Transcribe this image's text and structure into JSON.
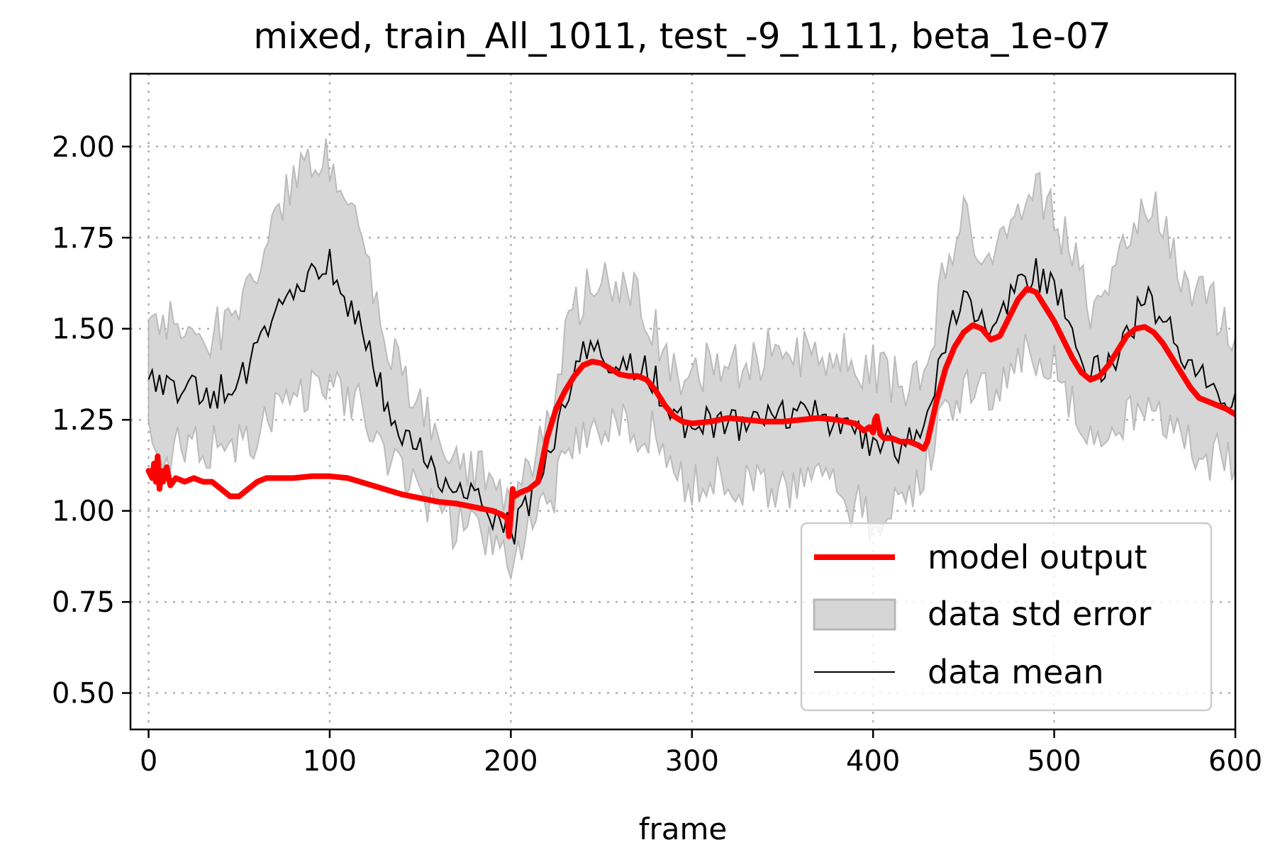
{
  "chart_data": {
    "type": "line",
    "title": "mixed, train_All_1011, test_-9_1111, beta_1e-07",
    "xlabel": "frame",
    "ylabel": "",
    "xlim": [
      -10,
      600
    ],
    "ylim": [
      0.4,
      2.2
    ],
    "xticks": [
      0,
      100,
      200,
      300,
      400,
      500,
      600
    ],
    "xtick_labels": [
      "0",
      "100",
      "200",
      "300",
      "400",
      "500",
      "600"
    ],
    "yticks": [
      0.5,
      0.75,
      1.0,
      1.25,
      1.5,
      1.75,
      2.0
    ],
    "ytick_labels": [
      "0.50",
      "0.75",
      "1.00",
      "1.25",
      "1.50",
      "1.75",
      "2.00"
    ],
    "grid": true,
    "legend_position": "lower-right",
    "colors": {
      "model_output": "#ff0000",
      "data_mean": "#000000",
      "std_error_fill": "#d6d6d6",
      "std_error_edge": "#b0b0b0",
      "grid": "#b0b0b0"
    },
    "frames": {
      "start": 0,
      "end": 600,
      "step": 2
    },
    "series": [
      {
        "name": "model output",
        "role": "line",
        "x": [
          0,
          2,
          3,
          4,
          5,
          6,
          7,
          8,
          10,
          12,
          15,
          20,
          25,
          30,
          35,
          40,
          45,
          50,
          55,
          60,
          65,
          70,
          80,
          90,
          100,
          110,
          120,
          130,
          140,
          150,
          160,
          170,
          180,
          190,
          195,
          198,
          199,
          200,
          201,
          202,
          205,
          210,
          215,
          220,
          225,
          230,
          235,
          240,
          245,
          250,
          255,
          260,
          265,
          270,
          275,
          280,
          285,
          290,
          295,
          300,
          310,
          320,
          330,
          340,
          350,
          360,
          370,
          380,
          390,
          395,
          398,
          400,
          401,
          402,
          404,
          406,
          410,
          415,
          420,
          425,
          428,
          430,
          435,
          440,
          445,
          450,
          455,
          460,
          465,
          470,
          475,
          480,
          485,
          490,
          495,
          500,
          505,
          510,
          515,
          520,
          525,
          530,
          535,
          540,
          545,
          550,
          555,
          560,
          565,
          570,
          575,
          580,
          585,
          590,
          595,
          600
        ],
        "y": [
          1.11,
          1.09,
          1.13,
          1.08,
          1.15,
          1.06,
          1.11,
          1.08,
          1.12,
          1.07,
          1.09,
          1.08,
          1.09,
          1.08,
          1.08,
          1.06,
          1.04,
          1.04,
          1.06,
          1.08,
          1.09,
          1.09,
          1.09,
          1.095,
          1.095,
          1.09,
          1.075,
          1.06,
          1.045,
          1.035,
          1.025,
          1.02,
          1.01,
          1.0,
          0.99,
          0.98,
          0.93,
          0.99,
          1.06,
          1.04,
          1.05,
          1.06,
          1.08,
          1.2,
          1.28,
          1.33,
          1.37,
          1.4,
          1.41,
          1.405,
          1.39,
          1.375,
          1.37,
          1.37,
          1.36,
          1.33,
          1.29,
          1.26,
          1.245,
          1.24,
          1.245,
          1.255,
          1.25,
          1.245,
          1.245,
          1.25,
          1.255,
          1.25,
          1.24,
          1.22,
          1.23,
          1.215,
          1.25,
          1.26,
          1.21,
          1.2,
          1.2,
          1.19,
          1.19,
          1.18,
          1.17,
          1.19,
          1.3,
          1.39,
          1.45,
          1.49,
          1.51,
          1.5,
          1.47,
          1.48,
          1.53,
          1.58,
          1.61,
          1.6,
          1.56,
          1.52,
          1.47,
          1.42,
          1.38,
          1.36,
          1.37,
          1.4,
          1.44,
          1.48,
          1.5,
          1.505,
          1.49,
          1.46,
          1.42,
          1.38,
          1.34,
          1.31,
          1.3,
          1.29,
          1.28,
          1.265
        ]
      },
      {
        "name": "data std error",
        "role": "band",
        "x": [
          0,
          10,
          20,
          30,
          40,
          50,
          60,
          70,
          80,
          90,
          100,
          110,
          120,
          130,
          140,
          150,
          160,
          170,
          180,
          190,
          200,
          210,
          220,
          230,
          240,
          250,
          260,
          270,
          280,
          290,
          300,
          310,
          320,
          330,
          340,
          350,
          360,
          370,
          380,
          390,
          400,
          410,
          420,
          430,
          440,
          450,
          460,
          470,
          480,
          490,
          500,
          510,
          520,
          530,
          540,
          550,
          560,
          570,
          580,
          590,
          600
        ],
        "lower": [
          1.19,
          1.15,
          1.19,
          1.17,
          1.17,
          1.18,
          1.22,
          1.3,
          1.36,
          1.32,
          1.38,
          1.31,
          1.28,
          1.16,
          1.09,
          1.02,
          0.99,
          0.96,
          0.93,
          0.89,
          0.86,
          0.95,
          1.02,
          1.13,
          1.24,
          1.24,
          1.23,
          1.23,
          1.22,
          1.11,
          1.08,
          1.08,
          1.08,
          1.07,
          1.07,
          1.07,
          1.08,
          1.09,
          1.07,
          1.01,
          0.98,
          1.0,
          1.02,
          1.14,
          1.27,
          1.32,
          1.31,
          1.35,
          1.41,
          1.44,
          1.39,
          1.29,
          1.19,
          1.19,
          1.26,
          1.3,
          1.27,
          1.2,
          1.15,
          1.15,
          1.13
        ],
        "upper": [
          1.52,
          1.52,
          1.5,
          1.46,
          1.5,
          1.53,
          1.64,
          1.82,
          1.9,
          1.94,
          1.96,
          1.85,
          1.7,
          1.46,
          1.38,
          1.3,
          1.2,
          1.17,
          1.11,
          1.09,
          1.02,
          1.11,
          1.24,
          1.48,
          1.6,
          1.62,
          1.6,
          1.58,
          1.5,
          1.38,
          1.36,
          1.4,
          1.38,
          1.42,
          1.43,
          1.44,
          1.43,
          1.42,
          1.43,
          1.4,
          1.4,
          1.36,
          1.34,
          1.38,
          1.7,
          1.8,
          1.73,
          1.73,
          1.83,
          1.88,
          1.81,
          1.7,
          1.56,
          1.58,
          1.72,
          1.84,
          1.82,
          1.67,
          1.59,
          1.55,
          1.45
        ]
      },
      {
        "name": "data mean",
        "role": "noisy-line",
        "x": [
          0,
          10,
          20,
          30,
          40,
          50,
          60,
          70,
          80,
          90,
          100,
          110,
          120,
          130,
          140,
          150,
          160,
          170,
          180,
          190,
          200,
          210,
          220,
          230,
          240,
          250,
          260,
          270,
          280,
          290,
          300,
          310,
          320,
          330,
          340,
          350,
          360,
          370,
          380,
          390,
          400,
          410,
          420,
          430,
          440,
          450,
          460,
          470,
          480,
          490,
          500,
          510,
          520,
          530,
          540,
          550,
          560,
          570,
          580,
          590,
          600
        ],
        "y": [
          1.36,
          1.34,
          1.34,
          1.31,
          1.33,
          1.35,
          1.43,
          1.56,
          1.63,
          1.63,
          1.67,
          1.58,
          1.49,
          1.31,
          1.23,
          1.16,
          1.09,
          1.06,
          1.02,
          0.99,
          0.94,
          1.03,
          1.13,
          1.3,
          1.42,
          1.43,
          1.41,
          1.4,
          1.36,
          1.25,
          1.22,
          1.24,
          1.23,
          1.245,
          1.25,
          1.255,
          1.255,
          1.255,
          1.25,
          1.21,
          1.19,
          1.18,
          1.18,
          1.26,
          1.48,
          1.56,
          1.52,
          1.54,
          1.62,
          1.66,
          1.6,
          1.5,
          1.38,
          1.39,
          1.49,
          1.57,
          1.55,
          1.44,
          1.37,
          1.35,
          1.29
        ],
        "noise_amplitude": 0.05,
        "band_noise_amplitude": 0.07
      }
    ]
  }
}
